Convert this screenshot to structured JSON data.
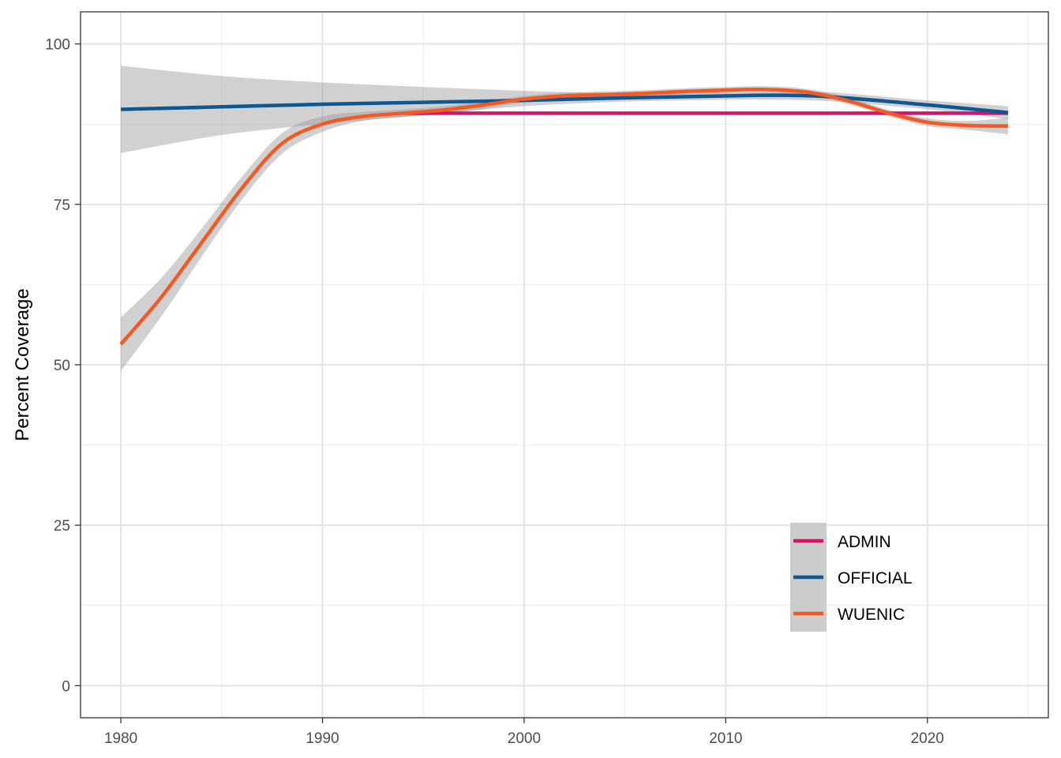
{
  "chart_data": {
    "type": "line",
    "title": "",
    "xlabel": "",
    "ylabel": "Percent Coverage",
    "xlim": [
      1978,
      2026
    ],
    "ylim": [
      -5,
      105
    ],
    "x_ticks": [
      1980,
      1990,
      2000,
      2010,
      2020
    ],
    "x_tick_labels": [
      "1980",
      "1990",
      "2000",
      "2010",
      "2020"
    ],
    "y_ticks": [
      0,
      25,
      50,
      75,
      100
    ],
    "y_tick_labels": [
      "0",
      "25",
      "50",
      "75",
      "100"
    ],
    "grid": true,
    "legend_position": "bottom-right",
    "series": [
      {
        "name": "ADMIN",
        "color": "#d6136a",
        "x": [
          1994,
          2024
        ],
        "values": [
          89.2,
          89.2
        ],
        "lower": [
          89.0,
          89.0
        ],
        "upper": [
          89.4,
          89.4
        ]
      },
      {
        "name": "OFFICIAL",
        "color": "#0f5790",
        "x": [
          1980,
          1985,
          1990,
          1995,
          2000,
          2005,
          2010,
          2012,
          2015,
          2020,
          2024
        ],
        "values": [
          89.8,
          90.2,
          90.6,
          90.9,
          91.2,
          91.6,
          91.9,
          92.0,
          91.8,
          90.5,
          89.3
        ],
        "lower": [
          83.0,
          85.8,
          87.5,
          88.9,
          90.3,
          91.0,
          91.3,
          91.3,
          91.1,
          89.8,
          88.3
        ],
        "upper": [
          96.6,
          95.0,
          94.0,
          93.3,
          92.7,
          92.3,
          92.4,
          92.5,
          92.5,
          91.2,
          90.3
        ]
      },
      {
        "name": "WUENIC",
        "color": "#f15a24",
        "x": [
          1980,
          1982,
          1984,
          1986,
          1988,
          1990,
          1992,
          1994,
          1996,
          1998,
          2000,
          2002,
          2004,
          2006,
          2008,
          2010,
          2012,
          2014,
          2016,
          2018,
          2020,
          2022,
          2024
        ],
        "values": [
          53.2,
          60.5,
          69.0,
          77.5,
          84.5,
          87.5,
          88.7,
          89.2,
          89.7,
          90.5,
          91.4,
          91.9,
          92.1,
          92.3,
          92.6,
          92.8,
          92.9,
          92.5,
          91.2,
          89.3,
          87.8,
          87.3,
          87.2
        ],
        "lower": [
          49.0,
          57.5,
          66.8,
          75.7,
          82.9,
          86.3,
          88.0,
          88.6,
          89.1,
          89.9,
          90.9,
          91.4,
          91.6,
          91.8,
          92.1,
          92.3,
          92.4,
          92.0,
          90.7,
          88.8,
          87.2,
          86.6,
          85.9
        ],
        "upper": [
          57.4,
          63.5,
          71.2,
          79.3,
          86.1,
          88.7,
          89.4,
          89.8,
          90.3,
          91.1,
          91.9,
          92.4,
          92.6,
          92.8,
          93.1,
          93.3,
          93.4,
          93.0,
          91.7,
          89.8,
          88.4,
          88.0,
          88.5
        ]
      }
    ]
  }
}
